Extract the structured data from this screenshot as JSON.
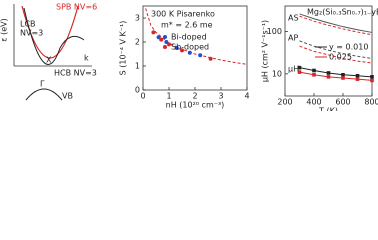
{
  "chart_data": [
    {
      "type": "schematic",
      "ylabel": "ε (eV)",
      "xlabel": "k",
      "annotations": [
        "SPB NV=6",
        "LCB",
        "NV=3",
        "X",
        "HCB NV=3",
        "Γ",
        "VB"
      ]
    },
    {
      "type": "scatter",
      "title": "300 K Pisarenko",
      "subtitle": "m* = 2.6 me",
      "xlabel": "nH (10²⁰ cm⁻³)",
      "ylabel": "S (10⁻⁴ V K⁻¹)",
      "xlim": [
        0,
        4
      ],
      "xticks": [
        0,
        1,
        2,
        3,
        4
      ],
      "ylim": [
        0,
        3.5
      ],
      "yticks": [
        0,
        1,
        2,
        3
      ],
      "line": {
        "color": "#d62728",
        "x": [
          0.1,
          0.3,
          0.5,
          1,
          1.5,
          2,
          2.5,
          3,
          3.5,
          4
        ],
        "values": [
          3.4,
          2.7,
          2.4,
          1.95,
          1.7,
          1.5,
          1.37,
          1.25,
          1.15,
          1.07
        ]
      },
      "series": [
        {
          "name": "Bi-doped",
          "color": "#1f4fd6",
          "x": [
            0.6,
            0.9,
            1.3,
            1.8,
            2.2
          ],
          "values": [
            2.2,
            2.0,
            1.75,
            1.55,
            1.45
          ]
        },
        {
          "name": "Sb-doped",
          "color": "#d62728",
          "x": [
            0.4,
            0.7,
            1.0,
            1.5,
            2.6
          ],
          "values": [
            2.4,
            2.1,
            1.9,
            1.65,
            1.3
          ]
        }
      ]
    },
    {
      "type": "line",
      "title": "Mg₂(Si₀.₃Sn₀.₇)₁₋yBiy",
      "xlabel": "T (K)",
      "ylabel": "μH (cm² V⁻¹s⁻¹)",
      "log_y": true,
      "xlim": [
        200,
        800
      ],
      "xticks": [
        200,
        400,
        600,
        800
      ],
      "ylim": [
        3,
        400
      ],
      "yticks": [
        10,
        100
      ],
      "annotations": [
        "AS",
        "AP",
        "μH"
      ],
      "x": [
        300,
        400,
        500,
        600,
        700,
        800
      ],
      "lines": [
        {
          "color": "#555555",
          "dash": false,
          "values": [
            260,
            200,
            160,
            130,
            110,
            95
          ]
        },
        {
          "color": "#d62728",
          "dash": true,
          "values": [
            230,
            175,
            140,
            115,
            97,
            84
          ]
        },
        {
          "color": "#555555",
          "dash": true,
          "values": [
            60,
            45,
            36,
            30,
            26,
            23
          ]
        },
        {
          "color": "#d62728",
          "dash": true,
          "values": [
            45,
            34,
            28,
            23,
            20,
            18
          ]
        }
      ],
      "series": [
        {
          "name": "y = 0.010",
          "color": "#222222",
          "values": [
            14,
            12,
            10.5,
            9.5,
            9,
            8.5
          ]
        },
        {
          "name": "0.025",
          "color": "#d62728",
          "values": [
            11,
            9.5,
            8.5,
            8,
            7.5,
            7
          ]
        }
      ]
    }
  ]
}
